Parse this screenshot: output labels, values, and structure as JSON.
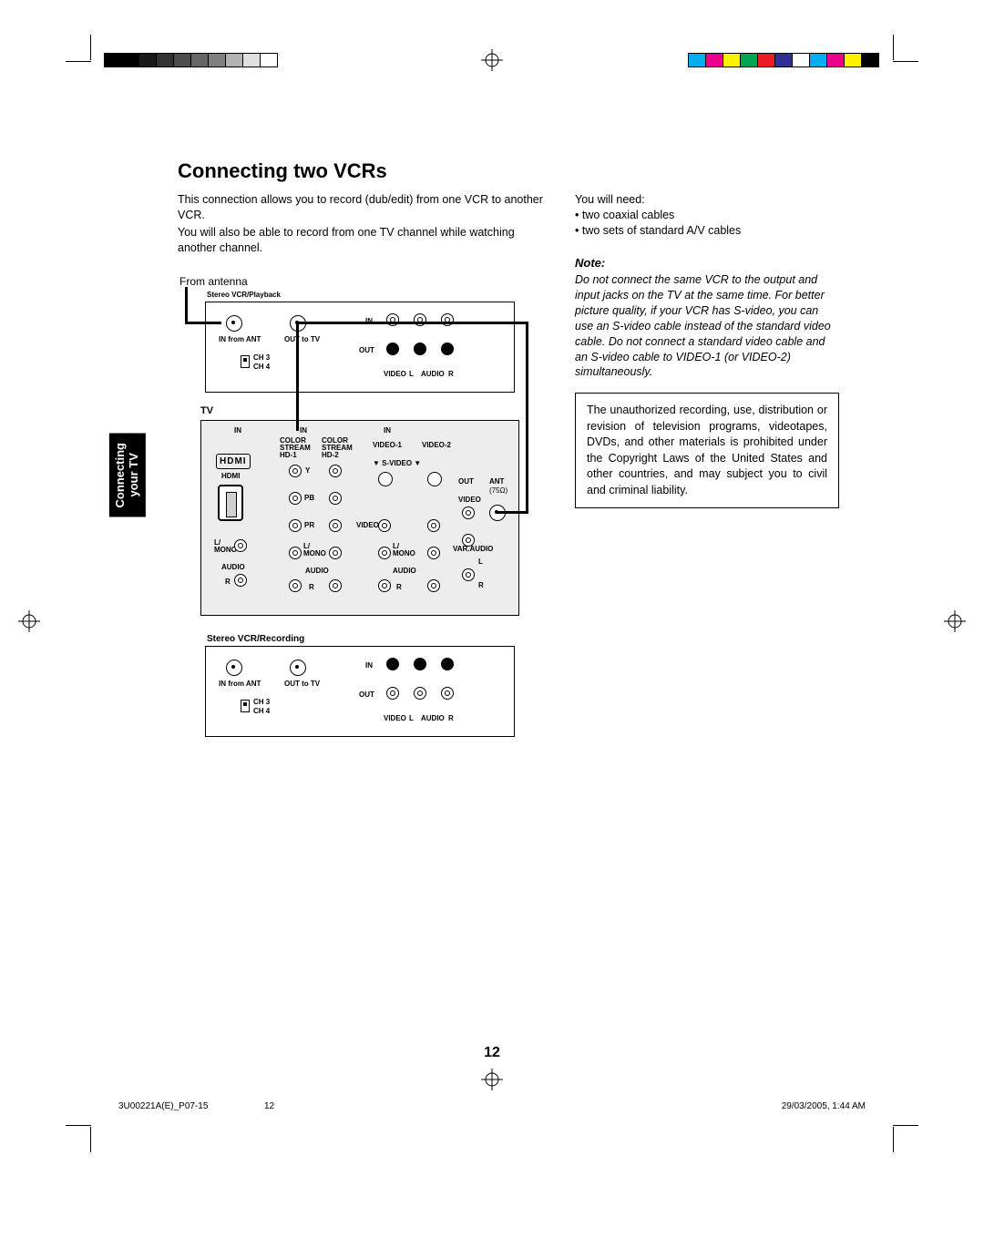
{
  "marks": {
    "gray_swatches": [
      "#000000",
      "#000000",
      "#1a1a1a",
      "#333333",
      "#4d4d4d",
      "#666666",
      "#808080",
      "#b3b3b3",
      "#e0e0e0",
      "#ffffff"
    ],
    "color_swatches": [
      "#00aeef",
      "#ec008c",
      "#fff200",
      "#00a651",
      "#ed1c24",
      "#2e3192",
      "#ffffff",
      "#00aeef",
      "#ec008c",
      "#fff200",
      "#000000"
    ]
  },
  "title": "Connecting two VCRs",
  "intro_left": [
    "This connection allows you to record (dub/edit) from one VCR to another VCR.",
    "You will also be able to record from one TV channel while watching another channel."
  ],
  "need": {
    "lead": "You will need:",
    "items": [
      "two coaxial cables",
      "two sets of standard A/V cables"
    ]
  },
  "note": {
    "head": "Note:",
    "body": "Do not connect the same VCR to the output and input jacks on the TV at the same time. For better picture quality, if your VCR has S-video, you can use an S-video cable instead of the standard video cable. Do not connect a standard video cable and an S-video cable to VIDEO-1 (or VIDEO-2) simultaneously."
  },
  "warning": "The unauthorized recording, use, distribution or revision of television programs, videotapes, DVDs, and other materials is prohibited under the Copyright Laws of the United States and other countries, and may subject you to civil and criminal liability.",
  "side_tab": {
    "line1": "Connecting",
    "line2": "your TV"
  },
  "diagram": {
    "from_antenna": "From antenna",
    "vcr1_title": "Stereo VCR/Playback",
    "vcr2_title": "Stereo VCR/Recording",
    "tv_label": "TV",
    "in_from_ant": "IN from ANT",
    "out_to_tv": "OUT to TV",
    "ch3": "CH 3",
    "ch4": "CH 4",
    "in": "IN",
    "out": "OUT",
    "video": "VIDEO",
    "audio": "AUDIO",
    "l": "L",
    "r": "R",
    "hdmi": "HDMI",
    "hdmi_logo": "HDMI",
    "color_stream_hd1": "COLOR\nSTREAM\nHD-1",
    "color_stream_hd2": "COLOR\nSTREAM\nHD-2",
    "video1": "VIDEO-1",
    "video2": "VIDEO-2",
    "svideo": "▼  S-VIDEO  ▼",
    "y": "Y",
    "pb": "PB",
    "pr": "PR",
    "l_mono": "L/\nMONO",
    "ant": "ANT",
    "ant_ohm": "(75Ω)",
    "var_audio": "VAR.AUDIO"
  },
  "page_number": "12",
  "footer": {
    "file": "3U00221A(E)_P07-15",
    "page": "12",
    "date": "29/03/2005, 1:44 AM"
  }
}
